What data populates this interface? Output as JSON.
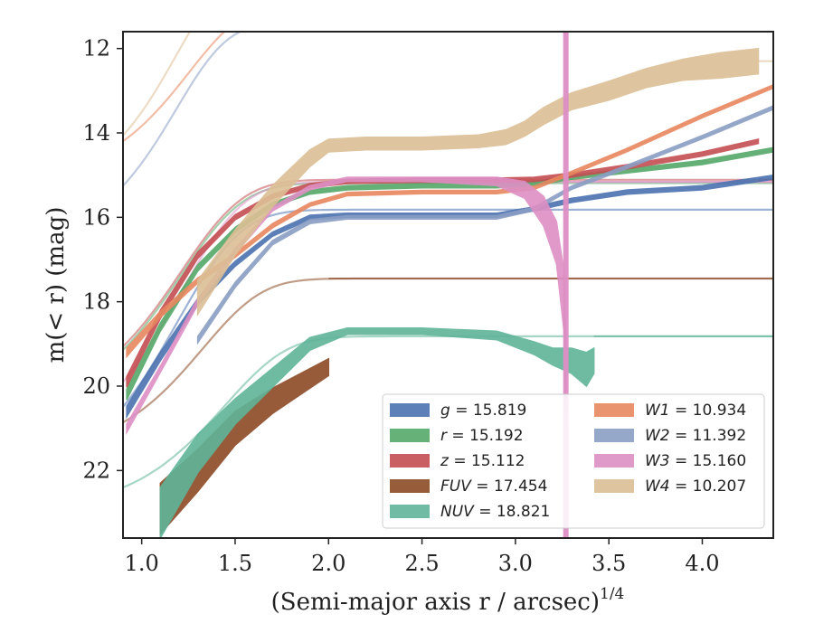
{
  "chart_data": {
    "type": "line",
    "xlabel": "(Semi-major axis r / arcsec)",
    "xlabel_exponent": "1/4",
    "ylabel": "m(< r) (mag)",
    "xlim": [
      0.9,
      4.38
    ],
    "ylim": [
      23.6,
      11.6
    ],
    "y_inverted": true,
    "grid": false,
    "legend_position": "lower-right",
    "x_ticks": [
      "1.0",
      "1.5",
      "2.0",
      "2.5",
      "3.0",
      "3.5",
      "4.0"
    ],
    "y_ticks": [
      "12",
      "14",
      "16",
      "18",
      "20",
      "22"
    ],
    "vline_x": 3.27,
    "series": [
      {
        "name": "g = 15.819",
        "color": "#4c72b0",
        "x": [
          0.92,
          1.1,
          1.3,
          1.5,
          1.7,
          1.9,
          2.1,
          2.5,
          2.9,
          3.1,
          3.3,
          3.6,
          4.0,
          4.38
        ],
        "y": [
          20.6,
          19.3,
          18.0,
          17.1,
          16.4,
          16.0,
          15.95,
          15.95,
          15.95,
          15.8,
          15.6,
          15.4,
          15.3,
          15.05
        ],
        "width": [
          0.25,
          0.2,
          0.15,
          0.12,
          0.1,
          0.1,
          0.1,
          0.1,
          0.1,
          0.1,
          0.1,
          0.1,
          0.1,
          0.1
        ],
        "fit": [
          15.82,
          0.6,
          0.5,
          0.9
        ]
      },
      {
        "name": "r = 15.192",
        "color": "#55a868",
        "x": [
          0.92,
          1.1,
          1.3,
          1.5,
          1.7,
          1.9,
          2.1,
          2.5,
          2.9,
          3.1,
          3.3,
          3.6,
          4.0,
          4.38
        ],
        "y": [
          20.2,
          18.6,
          17.2,
          16.3,
          15.7,
          15.4,
          15.3,
          15.25,
          15.25,
          15.2,
          15.05,
          14.9,
          14.7,
          14.4
        ],
        "width": [
          0.25,
          0.2,
          0.15,
          0.12,
          0.1,
          0.1,
          0.1,
          0.1,
          0.1,
          0.1,
          0.1,
          0.1,
          0.1,
          0.1
        ],
        "fit": [
          15.19,
          0.5,
          0.5,
          1.2
        ]
      },
      {
        "name": "z = 15.112",
        "color": "#c44e52",
        "x": [
          0.92,
          1.1,
          1.3,
          1.5,
          1.7,
          1.9,
          2.1,
          2.5,
          2.9,
          3.1,
          3.3,
          3.6,
          4.0,
          4.3
        ],
        "y": [
          19.9,
          18.3,
          16.9,
          16.0,
          15.5,
          15.25,
          15.15,
          15.12,
          15.12,
          15.1,
          15.0,
          14.8,
          14.5,
          14.2
        ],
        "width": [
          0.25,
          0.2,
          0.15,
          0.12,
          0.1,
          0.1,
          0.1,
          0.1,
          0.1,
          0.1,
          0.1,
          0.1,
          0.1,
          0.1
        ],
        "fit": [
          15.11,
          0.5,
          0.5,
          1.2
        ]
      },
      {
        "name": "FUV = 17.454",
        "color": "#8c4a25",
        "x": [
          1.1,
          1.3,
          1.5,
          1.7,
          1.85,
          2.0
        ],
        "y": [
          22.9,
          22.0,
          21.0,
          20.35,
          19.95,
          19.55
        ],
        "width": [
          1.2,
          1.0,
          0.8,
          0.6,
          0.5,
          0.4
        ],
        "fit": [
          17.45,
          0.4,
          0.45,
          3.5
        ]
      },
      {
        "name": "NUV = 18.821",
        "color": "#5fb499",
        "x": [
          1.1,
          1.3,
          1.5,
          1.7,
          1.9,
          2.1,
          2.5,
          2.9,
          3.1,
          3.2,
          3.3,
          3.38,
          3.42
        ],
        "y": [
          23.0,
          21.6,
          20.6,
          19.8,
          19.0,
          18.7,
          18.7,
          18.8,
          19.1,
          19.3,
          19.4,
          19.6,
          19.4
        ],
        "width": [
          1.2,
          0.9,
          0.6,
          0.45,
          0.3,
          0.15,
          0.15,
          0.2,
          0.3,
          0.4,
          0.6,
          0.8,
          0.6
        ],
        "fit": [
          18.82,
          0.4,
          0.35,
          5.0
        ]
      },
      {
        "name": "W1 = 10.934",
        "color": "#e8875f",
        "x": [
          0.92,
          1.1,
          1.3,
          1.5,
          1.7,
          1.9,
          2.1,
          2.5,
          2.9,
          3.1,
          3.3,
          3.6,
          4.0,
          4.38
        ],
        "y": [
          19.2,
          18.3,
          17.5,
          16.9,
          16.2,
          15.7,
          15.45,
          15.4,
          15.4,
          15.3,
          14.95,
          14.4,
          13.6,
          12.9
        ],
        "width": [
          0.2,
          0.15,
          0.12,
          0.1,
          0.1,
          0.08,
          0.08,
          0.08,
          0.08,
          0.08,
          0.08,
          0.08,
          0.08,
          0.08
        ],
        "fit": [
          10.93,
          0.4,
          0.6,
          4.3
        ]
      },
      {
        "name": "W2 = 11.392",
        "color": "#8a9ec4",
        "x": [
          1.3,
          1.5,
          1.7,
          1.9,
          2.1,
          2.5,
          2.9,
          3.1,
          3.3,
          3.6,
          4.0,
          4.38
        ],
        "y": [
          18.9,
          17.6,
          16.6,
          16.1,
          16.0,
          16.0,
          16.0,
          15.8,
          15.3,
          14.8,
          14.1,
          13.4
        ],
        "width": [
          0.15,
          0.12,
          0.1,
          0.1,
          0.08,
          0.08,
          0.08,
          0.08,
          0.08,
          0.08,
          0.08,
          0.08
        ],
        "fit": [
          11.39,
          0.5,
          0.75,
          4.3
        ]
      },
      {
        "name": "W3 = 15.160",
        "color": "#dd8fc4",
        "x": [
          0.92,
          1.1,
          1.3,
          1.5,
          1.7,
          1.9,
          2.1,
          2.5,
          2.9,
          3.05,
          3.15,
          3.22,
          3.26,
          3.27
        ],
        "y": [
          21.0,
          19.6,
          18.0,
          16.8,
          15.8,
          15.3,
          15.1,
          15.1,
          15.15,
          15.35,
          15.85,
          16.6,
          18.0,
          20.0
        ],
        "width": [
          0.2,
          0.15,
          0.15,
          0.12,
          0.1,
          0.1,
          0.1,
          0.1,
          0.2,
          0.4,
          0.7,
          1.0,
          1.4,
          1.8
        ],
        "fit": [
          15.16,
          0.6,
          0.5,
          1.2
        ]
      },
      {
        "name": "W4 = 10.207",
        "color": "#dcbf95",
        "x": [
          1.3,
          1.5,
          1.7,
          1.9,
          2.0,
          2.2,
          2.5,
          2.8,
          2.95,
          3.05,
          3.15,
          3.3,
          3.5,
          3.7,
          3.9,
          4.1,
          4.3
        ],
        "y": [
          17.9,
          16.6,
          15.5,
          14.6,
          14.3,
          14.25,
          14.25,
          14.2,
          14.1,
          13.9,
          13.6,
          13.25,
          13.0,
          12.7,
          12.5,
          12.4,
          12.3
        ],
        "width": [
          0.8,
          0.6,
          0.5,
          0.4,
          0.3,
          0.3,
          0.3,
          0.3,
          0.35,
          0.35,
          0.4,
          0.4,
          0.45,
          0.45,
          0.5,
          0.6,
          0.6
        ],
        "fit": [
          10.21,
          0.5,
          0.9,
          8.0
        ]
      }
    ]
  }
}
